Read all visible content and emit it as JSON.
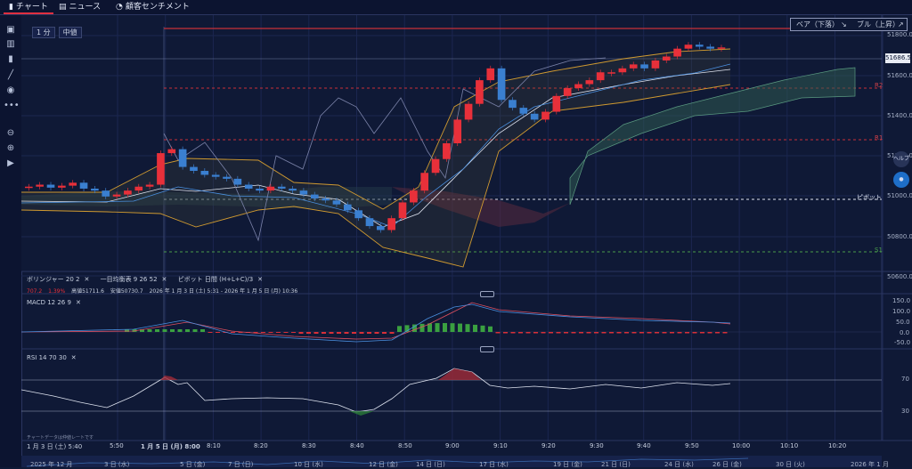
{
  "tabs": [
    {
      "label": "チャート",
      "icon": "chart-icon"
    },
    {
      "label": "ニュース",
      "icon": "news-icon"
    },
    {
      "label": "顧客センチメント",
      "icon": "sentiment-icon"
    }
  ],
  "toolbar_chips": [
    "1 分",
    "中値"
  ],
  "sentiment_toggle": {
    "bear": "ベア（下落）",
    "bull": "ブル（上昇）"
  },
  "current_price": "51686.5",
  "price_axis": [
    "51800.0",
    "51600.0",
    "51400.0",
    "51200.0",
    "51000.0",
    "50800.0",
    "50600.0"
  ],
  "levels": {
    "r2": "R2",
    "r1": "R1",
    "pivot": "ピボット",
    "s1": "S1"
  },
  "legend": {
    "bollinger": "ボリンジャー 20 2",
    "ichimoku": "一目均衡表 9 26 52",
    "pivot": "ピボット 日間 (H+L+C)/3",
    "change": "707.2",
    "change_pct": "1.39%",
    "high": "高値51711.6",
    "low": "安値50730.7",
    "period": "2026 年 1 月 3 日 (土) 5:31 - 2026 年 1 月 5 日 (月) 10:36"
  },
  "macd": {
    "label": "MACD 12 26 9",
    "axis": [
      "150.0",
      "100.0",
      "50.0",
      "0.0",
      "-50.0"
    ]
  },
  "rsi": {
    "label": "RSI 14 70 30",
    "axis": [
      "70",
      "30"
    ]
  },
  "footnote": "チャートデータは仲値レートです",
  "time_labels": [
    "1 月 3 日 (土) 5:40",
    "5:50",
    "1 月 5 日 (月) 8:00",
    "8:10",
    "8:20",
    "8:30",
    "8:40",
    "8:50",
    "9:00",
    "9:10",
    "9:20",
    "9:30",
    "9:40",
    "9:50",
    "10:00",
    "10:10",
    "10:20"
  ],
  "date_labels": [
    "2025 年 12 月",
    "3 日 (水)",
    "5 日 (金)",
    "7 日 (日)",
    "10 日 (水)",
    "12 日 (金)",
    "14 日 (日)",
    "17 日 (水)",
    "19 日 (金)",
    "21 日 (日)",
    "24 日 (水)",
    "26 日 (金)",
    "30 日 (火)",
    "2026 年 1 月"
  ],
  "colors": {
    "up": "#e8303a",
    "down": "#3a7fd0",
    "background": "#0f1936",
    "cloud": "#2f5a50",
    "resistance": "#c83038",
    "support": "#4a9a4a"
  },
  "chart_data": {
    "type": "line",
    "series": [
      {
        "values": [
          50980,
          50990,
          50975,
          50985,
          51000,
          50970,
          50960,
          50930,
          50940,
          50960,
          50980,
          50990,
          51150,
          51170,
          51080,
          51060,
          51040,
          51030,
          51020,
          50990,
          50970,
          50960,
          50980,
          50970,
          50960,
          50940,
          50920,
          50910,
          50890,
          50860,
          50820,
          50780,
          50760,
          50820,
          50900,
          50960,
          51050,
          51120,
          51200,
          51320,
          51400,
          51520,
          51580,
          51420,
          51380,
          51350,
          51320,
          51360,
          51440,
          51480,
          51500,
          51520,
          51560,
          51560,
          51580,
          51600,
          51580,
          51620,
          51640,
          51680,
          51700,
          51690,
          51680,
          51686
        ]
      }
    ],
    "ylim": [
      50550,
      51850
    ]
  }
}
